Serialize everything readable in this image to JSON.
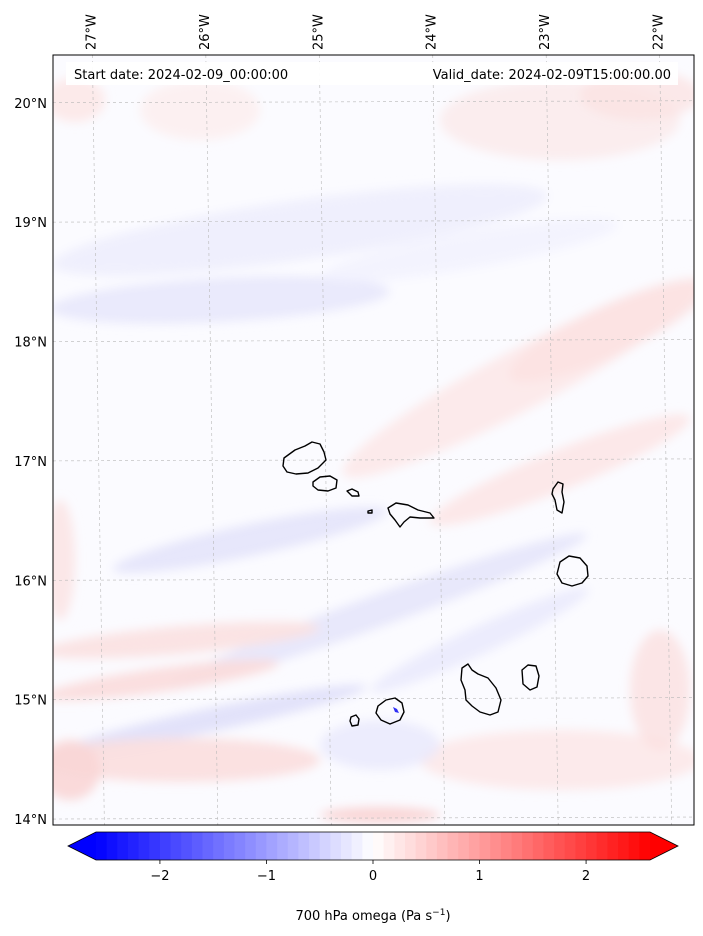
{
  "map": {
    "start_date_text": "Start date: 2024-02-09_00:00:00",
    "valid_date_text": "Valid_date: 2024-02-09T15:00:00.00",
    "lon_ticks": [
      {
        "value": -27,
        "label": "27°W"
      },
      {
        "value": -26,
        "label": "26°W"
      },
      {
        "value": -25,
        "label": "25°W"
      },
      {
        "value": -24,
        "label": "24°W"
      },
      {
        "value": -23,
        "label": "23°W"
      },
      {
        "value": -22,
        "label": "22°W"
      }
    ],
    "lat_ticks": [
      {
        "value": 20,
        "label": "20°N"
      },
      {
        "value": 19,
        "label": "19°N"
      },
      {
        "value": 18,
        "label": "18°N"
      },
      {
        "value": 17,
        "label": "17°N"
      },
      {
        "value": 16,
        "label": "16°N"
      },
      {
        "value": 15,
        "label": "15°N"
      },
      {
        "value": 14,
        "label": "14°N"
      }
    ],
    "lon_range": [
      -27.4,
      -21.75
    ],
    "lat_range": [
      13.95,
      20.4
    ],
    "grid": true,
    "colormap": "bwr",
    "field": "700 hPa omega"
  },
  "colorbar": {
    "range": [
      -2.6,
      2.6
    ],
    "ticks": [
      {
        "value": -2,
        "label": "−2"
      },
      {
        "value": -1,
        "label": "−1"
      },
      {
        "value": 0,
        "label": "0"
      },
      {
        "value": 1,
        "label": "1"
      },
      {
        "value": 2,
        "label": "2"
      }
    ],
    "label": "700 hPa omega (Pa s",
    "label_sup": "−1",
    "label_end": ")",
    "extend": "both",
    "color_min": "#0000ff",
    "color_mid": "#ffffff",
    "color_max": "#ff0000"
  }
}
